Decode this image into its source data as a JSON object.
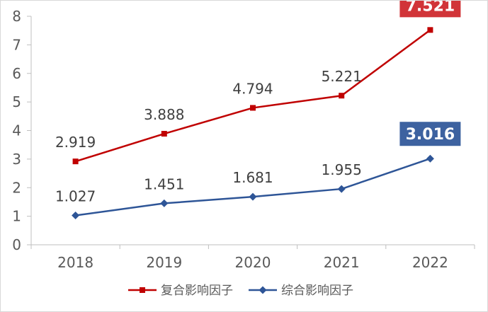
{
  "chart_data": {
    "type": "line",
    "title": "",
    "xlabel": "",
    "ylabel": "",
    "categories": [
      "2018",
      "2019",
      "2020",
      "2021",
      "2022"
    ],
    "ylim": [
      0,
      8
    ],
    "yticks": [
      "0",
      "1",
      "2",
      "3",
      "4",
      "5",
      "6",
      "7",
      "8"
    ],
    "grid": false,
    "legend_position": "bottom",
    "series": [
      {
        "name": "复合影响因子",
        "color": "#c00000",
        "marker": "square",
        "values": [
          2.919,
          3.888,
          4.794,
          5.221,
          7.521
        ],
        "labels": [
          "2.919",
          "3.888",
          "4.794",
          "5.221",
          "7.521"
        ],
        "highlight_last": true,
        "highlight_color": "#d13438"
      },
      {
        "name": "综合影响因子",
        "color": "#2e5597",
        "marker": "diamond",
        "values": [
          1.027,
          1.451,
          1.681,
          1.955,
          3.016
        ],
        "labels": [
          "1.027",
          "1.451",
          "1.681",
          "1.955",
          "3.016"
        ],
        "highlight_last": true,
        "highlight_color": "#3d62a0"
      }
    ]
  }
}
